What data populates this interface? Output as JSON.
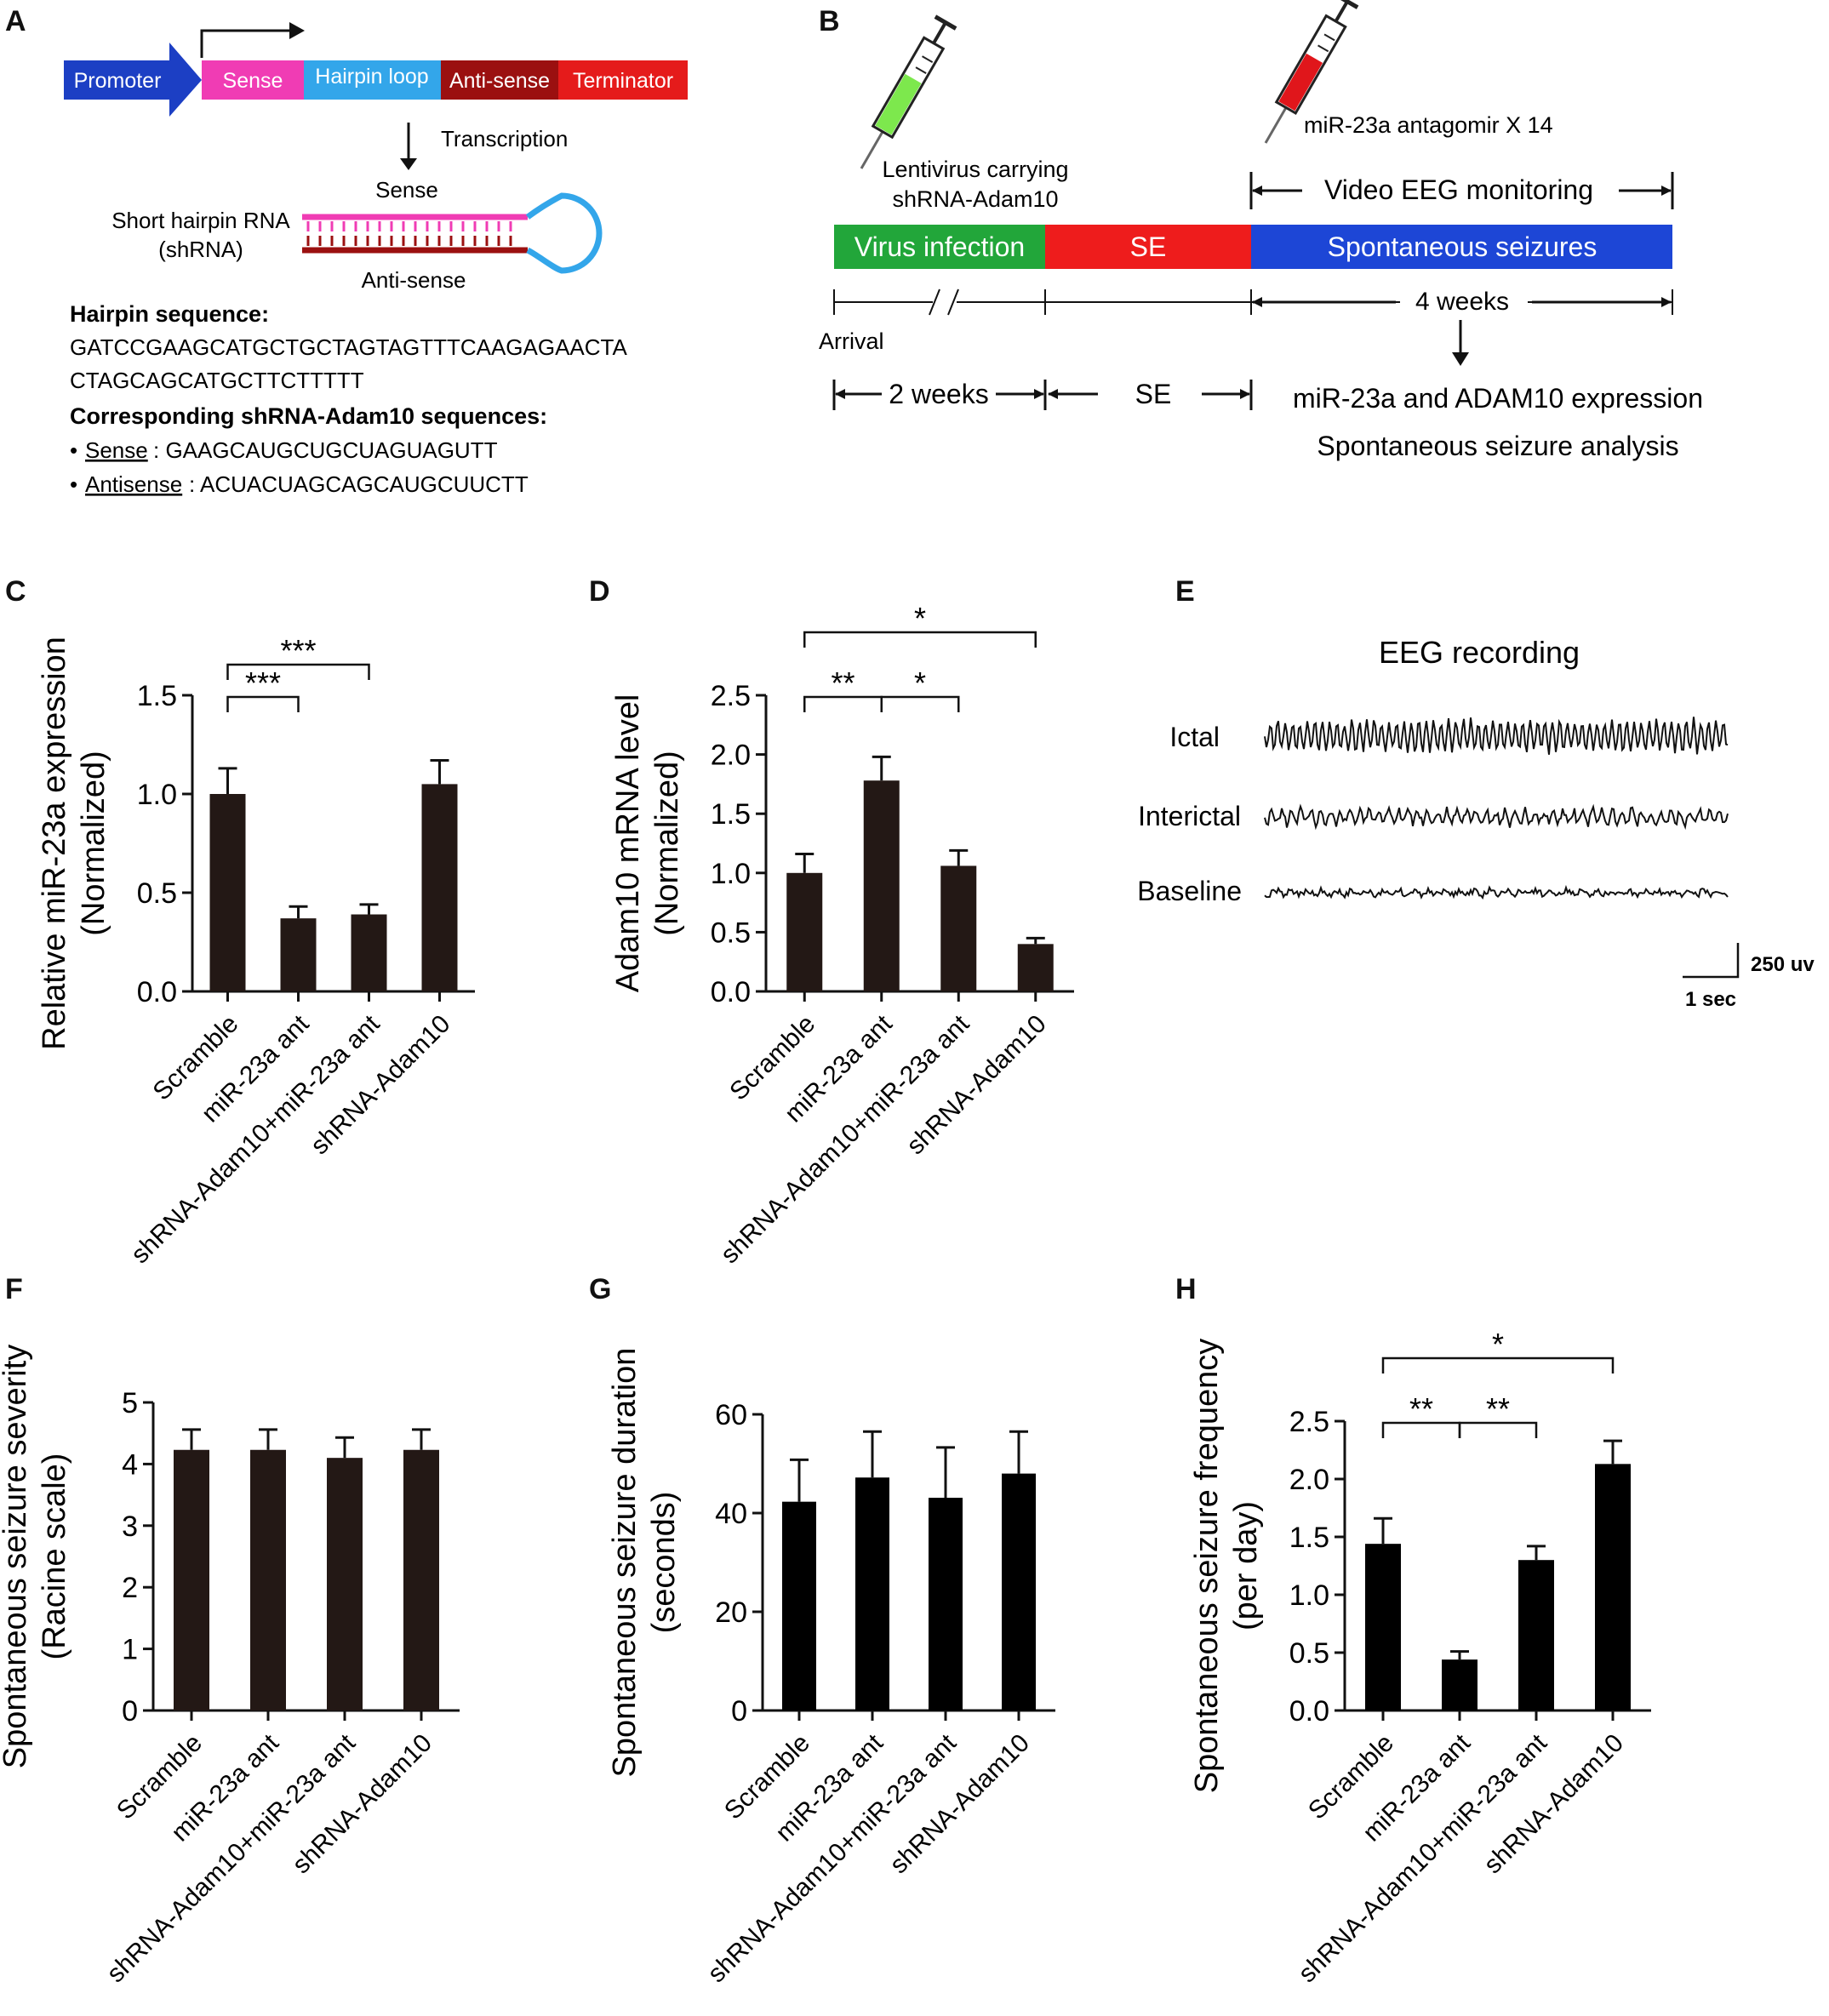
{
  "panel_letters": [
    "A",
    "B",
    "C",
    "D",
    "E",
    "F",
    "G",
    "H"
  ],
  "panel_a": {
    "construct": [
      "Promoter",
      "Sense",
      "Hairpin loop",
      "Anti-sense",
      "Terminator"
    ],
    "transcription": "Transcription",
    "sense_label": "Sense",
    "shrna_label": [
      "Short hairpin RNA",
      "(shRNA)"
    ],
    "antisense_label": "Anti-sense",
    "hairpin_heading": "Hairpin sequence:",
    "hairpin_seq": [
      "GATCCGAAGCATGCTGCTAGTAGTTTCAAGAGAACTA",
      "CTAGCAGCATGCTTCTTTTT"
    ],
    "shrna_heading": "Corresponding shRNA-Adam10 sequences:",
    "bullet": "•",
    "sense_key": "Sense",
    "sense_seq": ": GAAGCAUGCUGCUAGUAGUTT",
    "antisense_key": "Antisense",
    "antisense_seq": ": ACUACUAGCAGCAUGCUUCTT",
    "colors": {
      "promoter": "#1c3fc4",
      "sense": "#f03cb4",
      "loop": "#33a6ea",
      "antisense": "#9b1010",
      "terminator": "#e51b1b"
    }
  },
  "panel_b": {
    "lenti": [
      "Lentivirus carrying",
      "shRNA-Adam10"
    ],
    "antagomir": "miR-23a antagomir X 14",
    "video": "Video EEG monitoring",
    "phases": [
      "Virus infection",
      "SE",
      "Spontaneous seizures"
    ],
    "weeks4": "4 weeks",
    "arrival": "Arrival",
    "weeks2": "2 weeks",
    "se": "SE",
    "outcomes": [
      "miR-23a and ADAM10 expression",
      "Spontaneous seizure analysis"
    ],
    "colors": {
      "virus": "#22a63a",
      "se": "#ee1c1c",
      "spont": "#1d46d6",
      "syringe_green": "#7de84d",
      "syringe_red": "#e0161b"
    }
  },
  "panel_e": {
    "title": "EEG recording",
    "traces": [
      "Ictal",
      "Interictal",
      "Baseline"
    ],
    "scale_v": "250 uv",
    "scale_t": "1 sec"
  },
  "chart_data": [
    {
      "panel": "C",
      "type": "bar",
      "categories": [
        "Scramble",
        "miR-23a ant",
        "shRNA-Adam10+miR-23a ant",
        "shRNA-Adam10"
      ],
      "values": [
        1.0,
        0.37,
        0.39,
        1.05
      ],
      "errors": [
        0.13,
        0.06,
        0.05,
        0.12
      ],
      "ylabel": [
        "Relative miR-23a expression",
        "(Normalized)"
      ],
      "ylim": [
        0,
        1.5
      ],
      "ticks": [
        "0.0",
        "0.5",
        "1.0",
        "1.5"
      ],
      "significance": [
        {
          "from": 0,
          "to": 1,
          "label": "***"
        },
        {
          "from": 0,
          "to": 2,
          "label": "***"
        }
      ],
      "bar_color": "#231815"
    },
    {
      "panel": "D",
      "type": "bar",
      "categories": [
        "Scramble",
        "miR-23a ant",
        "shRNA-Adam10+miR-23a ant",
        "shRNA-Adam10"
      ],
      "values": [
        1.0,
        1.78,
        1.06,
        0.4
      ],
      "errors": [
        0.16,
        0.2,
        0.13,
        0.05
      ],
      "ylabel": [
        "Adam10 mRNA level",
        "(Normalized)"
      ],
      "ylim": [
        0,
        2.5
      ],
      "ticks": [
        "0.0",
        "0.5",
        "1.0",
        "1.5",
        "2.0",
        "2.5"
      ],
      "significance": [
        {
          "from": 0,
          "to": 1,
          "label": "**"
        },
        {
          "from": 1,
          "to": 2,
          "label": "*"
        },
        {
          "from": 0,
          "to": 3,
          "label": "*"
        }
      ],
      "bar_color": "#231815"
    },
    {
      "panel": "F",
      "type": "bar",
      "categories": [
        "Scramble",
        "miR-23a ant",
        "shRNA-Adam10+miR-23a ant",
        "shRNA-Adam10"
      ],
      "values": [
        4.23,
        4.23,
        4.1,
        4.23
      ],
      "errors": [
        0.33,
        0.33,
        0.33,
        0.33
      ],
      "ylabel": [
        "Spontaneous seizure severity",
        "(Racine scale)"
      ],
      "ylim": [
        0,
        5
      ],
      "ticks": [
        "0",
        "1",
        "2",
        "3",
        "4",
        "5"
      ],
      "significance": [],
      "bar_color": "#231815"
    },
    {
      "panel": "G",
      "type": "bar",
      "categories": [
        "Scramble",
        "miR-23a ant",
        "shRNA-Adam10+miR-23a ant",
        "shRNA-Adam10"
      ],
      "values": [
        42.3,
        47.2,
        43.1,
        48.0
      ],
      "errors": [
        8.5,
        9.3,
        10.2,
        8.5
      ],
      "ylabel": [
        "Spontaneous seizure duration",
        "(seconds)"
      ],
      "ylim": [
        0,
        60
      ],
      "ticks": [
        "0",
        "20",
        "40",
        "60"
      ],
      "significance": [],
      "bar_color": "#000000"
    },
    {
      "panel": "H",
      "type": "bar",
      "categories": [
        "Scramble",
        "miR-23a ant",
        "shRNA-Adam10+miR-23a ant",
        "shRNA-Adam10"
      ],
      "values": [
        1.44,
        0.44,
        1.3,
        2.13
      ],
      "errors": [
        0.22,
        0.07,
        0.12,
        0.2
      ],
      "ylabel": [
        "Spontaneous seizure frequency",
        "(per day)"
      ],
      "ylim": [
        0,
        2.5
      ],
      "ticks": [
        "0.0",
        "0.5",
        "1.0",
        "1.5",
        "2.0",
        "2.5"
      ],
      "significance": [
        {
          "from": 0,
          "to": 1,
          "label": "**"
        },
        {
          "from": 1,
          "to": 2,
          "label": "**"
        },
        {
          "from": 0,
          "to": 3,
          "label": "*"
        }
      ],
      "bar_color": "#000000"
    }
  ]
}
